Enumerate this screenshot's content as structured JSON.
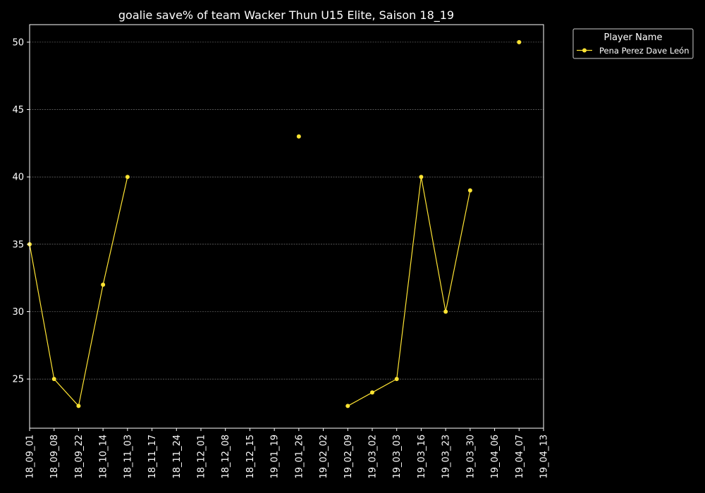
{
  "chart_data": {
    "type": "line",
    "title": "goalie save% of team Wacker Thun U15 Elite, Saison 18_19",
    "xlabel": "",
    "ylabel": "",
    "categories": [
      "18_09_01",
      "18_09_08",
      "18_09_22",
      "18_10_14",
      "18_11_03",
      "18_11_17",
      "18_11_24",
      "18_12_01",
      "18_12_08",
      "18_12_15",
      "19_01_19",
      "19_01_26",
      "19_02_02",
      "19_02_09",
      "19_03_02",
      "19_03_03",
      "19_03_16",
      "19_03_23",
      "19_03_30",
      "19_04_06",
      "19_04_07",
      "19_04_13"
    ],
    "series": [
      {
        "name": "Pena Perez Dave León",
        "values": [
          35,
          25,
          23,
          32,
          40,
          null,
          null,
          null,
          null,
          null,
          null,
          43,
          null,
          23,
          24,
          25,
          40,
          30,
          39,
          null,
          50,
          null
        ]
      }
    ],
    "yticks": [
      25,
      30,
      35,
      40,
      45,
      50
    ],
    "ylim": [
      21.35,
      51.3
    ],
    "grid": true,
    "legend": {
      "title": "Player Name",
      "placement": "outside-top-right"
    },
    "colors": {
      "background": "#000000",
      "line": "#ffe433",
      "text": "#ffffff",
      "grid": "#888888"
    }
  }
}
